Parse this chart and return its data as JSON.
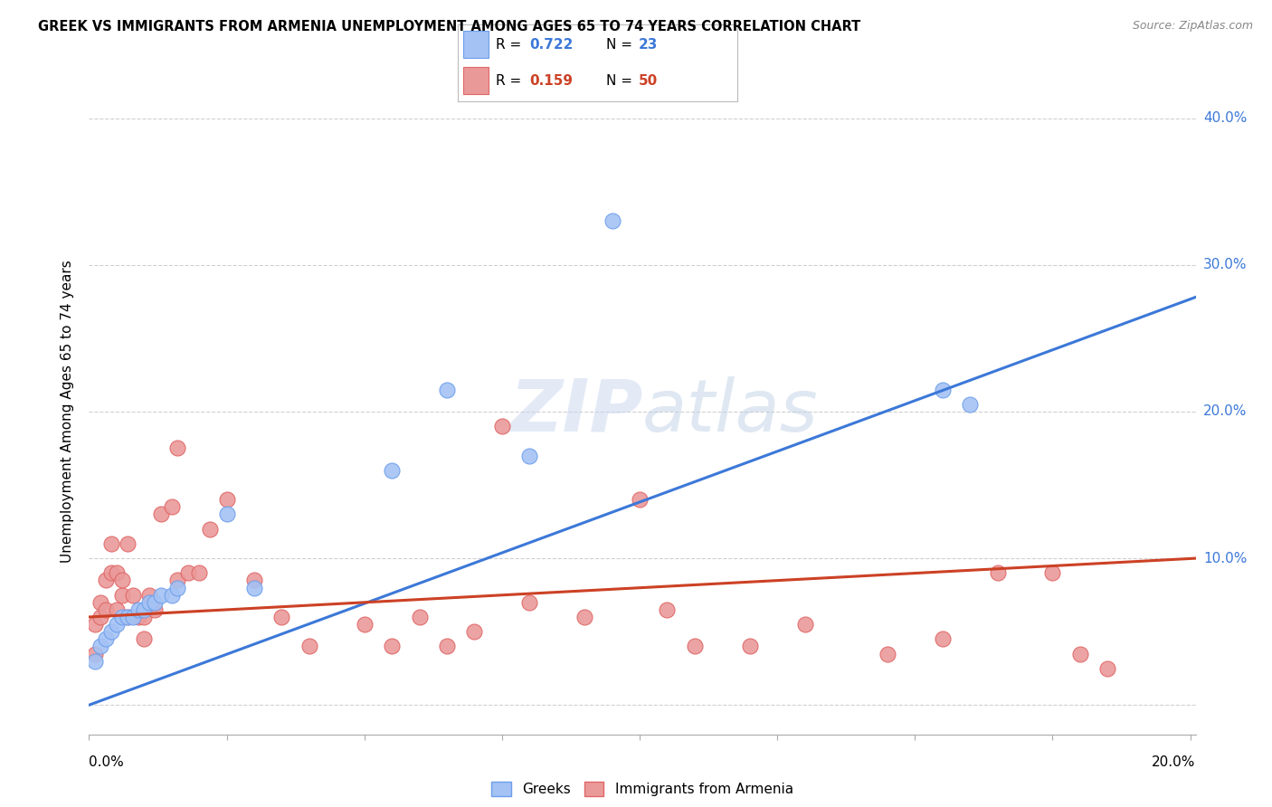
{
  "title": "GREEK VS IMMIGRANTS FROM ARMENIA UNEMPLOYMENT AMONG AGES 65 TO 74 YEARS CORRELATION CHART",
  "source": "Source: ZipAtlas.com",
  "ylabel": "Unemployment Among Ages 65 to 74 years",
  "watermark": "ZIPatlas",
  "legend_R1": "0.722",
  "legend_N1": "23",
  "legend_R2": "0.159",
  "legend_N2": "50",
  "legend_bottom1": "Greeks",
  "legend_bottom2": "Immigrants from Armenia",
  "color_blue_fill": "#a4c2f4",
  "color_blue_edge": "#6d9eeb",
  "color_blue_line": "#3c78d8",
  "color_pink_fill": "#ea9999",
  "color_pink_edge": "#e06666",
  "color_pink_line": "#cc4125",
  "greek_x": [
    0.001,
    0.002,
    0.003,
    0.004,
    0.005,
    0.006,
    0.007,
    0.008,
    0.009,
    0.01,
    0.011,
    0.012,
    0.013,
    0.015,
    0.016,
    0.025,
    0.03,
    0.055,
    0.065,
    0.08,
    0.095,
    0.155,
    0.16
  ],
  "greek_y": [
    0.03,
    0.04,
    0.045,
    0.05,
    0.055,
    0.06,
    0.06,
    0.06,
    0.065,
    0.065,
    0.07,
    0.07,
    0.075,
    0.075,
    0.08,
    0.13,
    0.08,
    0.16,
    0.215,
    0.17,
    0.33,
    0.215,
    0.205
  ],
  "armenia_x": [
    0.001,
    0.001,
    0.002,
    0.002,
    0.003,
    0.003,
    0.004,
    0.004,
    0.005,
    0.005,
    0.006,
    0.006,
    0.007,
    0.007,
    0.008,
    0.009,
    0.01,
    0.01,
    0.011,
    0.012,
    0.013,
    0.015,
    0.016,
    0.016,
    0.018,
    0.02,
    0.022,
    0.025,
    0.03,
    0.035,
    0.04,
    0.05,
    0.055,
    0.06,
    0.065,
    0.07,
    0.075,
    0.08,
    0.09,
    0.1,
    0.105,
    0.11,
    0.12,
    0.13,
    0.145,
    0.155,
    0.165,
    0.175,
    0.18,
    0.185
  ],
  "armenia_y": [
    0.055,
    0.035,
    0.07,
    0.06,
    0.065,
    0.085,
    0.09,
    0.11,
    0.065,
    0.09,
    0.075,
    0.085,
    0.11,
    0.06,
    0.075,
    0.06,
    0.06,
    0.045,
    0.075,
    0.065,
    0.13,
    0.135,
    0.175,
    0.085,
    0.09,
    0.09,
    0.12,
    0.14,
    0.085,
    0.06,
    0.04,
    0.055,
    0.04,
    0.06,
    0.04,
    0.05,
    0.19,
    0.07,
    0.06,
    0.14,
    0.065,
    0.04,
    0.04,
    0.055,
    0.035,
    0.045,
    0.09,
    0.09,
    0.035,
    0.025
  ],
  "xmin": 0.0,
  "xmax": 0.201,
  "ymin": -0.02,
  "ymax": 0.42,
  "greek_trend_x0": 0.0,
  "greek_trend_y0": 0.0,
  "greek_trend_x1": 0.201,
  "greek_trend_y1": 0.278,
  "armenia_trend_x0": 0.0,
  "armenia_trend_y0": 0.06,
  "armenia_trend_x1": 0.201,
  "armenia_trend_y1": 0.1,
  "yticks": [
    0.0,
    0.1,
    0.2,
    0.3,
    0.4
  ],
  "ytick_labels": [
    "",
    "10.0%",
    "20.0%",
    "30.0%",
    "40.0%"
  ],
  "xticks": [
    0.0,
    0.025,
    0.05,
    0.075,
    0.1,
    0.125,
    0.15,
    0.175,
    0.2
  ],
  "grid_color": "#d0d0d0",
  "spine_color": "#aaaaaa"
}
